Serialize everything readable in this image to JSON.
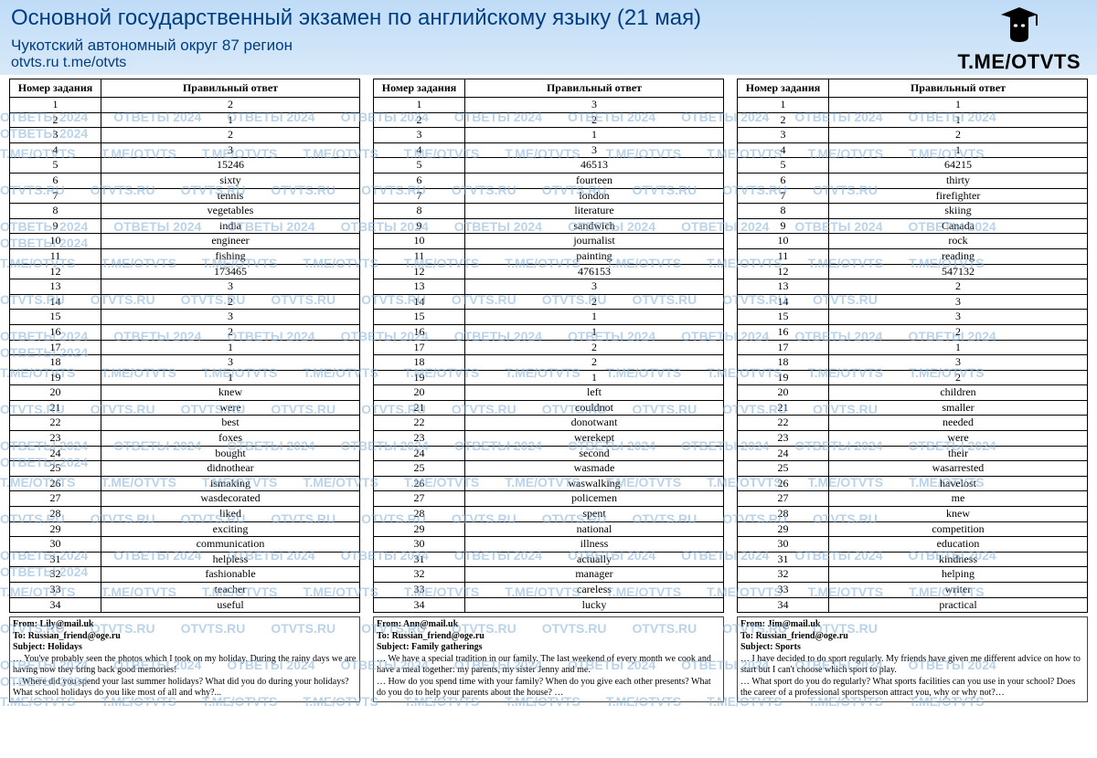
{
  "header": {
    "title": "Основной государственный экзамен по английскому языку (21 мая)",
    "subtitle": "Чукотский автономный округ 87 регион",
    "links": "otvts.ru   t.me/otvts",
    "logo_text": "T.ME/OTVTS"
  },
  "table_header": {
    "col1": "Номер задания",
    "col2": "Правильный ответ"
  },
  "variants": [
    {
      "answers": [
        "2",
        "1",
        "2",
        "3",
        "15246",
        "sixty",
        "tennis",
        "vegetables",
        "india",
        "engineer",
        "fishing",
        "173465",
        "3",
        "2",
        "3",
        "2",
        "1",
        "3",
        "1",
        "knew",
        "were",
        "best",
        "foxes",
        "bought",
        "didnothear",
        "ismaking",
        "wasdecorated",
        "liked",
        "exciting",
        "communication",
        "helpless",
        "fashionable",
        "teacher",
        "useful"
      ],
      "mail": {
        "from": "From: Lily@mail.uk",
        "to": "To: Russian_friend@oge.ru",
        "subject": "Subject: Holidays",
        "body1": "… You've probably seen the photos which I took on my holiday. During the rainy days we are having now they bring back good memories!",
        "body2": "…Where did you spend your last summer holidays? What did you do during your holidays? What school holidays do you like most of all and why?..."
      }
    },
    {
      "answers": [
        "3",
        "2",
        "1",
        "3",
        "46513",
        "fourteen",
        "london",
        "literature",
        "sandwich",
        "journalist",
        "painting",
        "476153",
        "3",
        "2",
        "1",
        "1",
        "2",
        "2",
        "1",
        "left",
        "couldnot",
        "donotwant",
        "werekept",
        "second",
        "wasmade",
        "waswalking",
        "policemen",
        "spent",
        "national",
        "illness",
        "actually",
        "manager",
        "careless",
        "lucky"
      ],
      "mail": {
        "from": "From: Ann@mail.uk",
        "to": "To: Russian_friend@oge.ru",
        "subject": "Subject: Family gatherings",
        "body1": "… We have a special tradition in our family. The last weekend of every month we cook and have a meal together: my parents, my sister Jenny and me.",
        "body2": "… How do you spend time with your family? When do you give each other presents? What do you do to help your parents about the house? …"
      }
    },
    {
      "answers": [
        "1",
        "1",
        "2",
        "1",
        "64215",
        "thirty",
        "firefighter",
        "skiing",
        "Canada",
        "rock",
        "reading",
        "547132",
        "2",
        "3",
        "3",
        "2",
        "1",
        "3",
        "2",
        "children",
        "smaller",
        "needed",
        "were",
        "their",
        "wasarrested",
        "havelost",
        "me",
        "knew",
        "competition",
        "education",
        "kindness",
        "helping",
        "writer",
        "practical"
      ],
      "mail": {
        "from": "From: Jim@mail.uk",
        "to": "To: Russian_friend@oge.ru",
        "subject": "Subject: Sports",
        "body1": "… I have decided to do sport regularly. My friends have given me different advice on how to start but I can't choose which sport to play.",
        "body2": "… What sport do you do regularly? What sports facilities can you use in your school? Does the career of a professional sportsperson attract you, why or why not?…"
      }
    }
  ],
  "watermarks": [
    "ОТВЕТЫ 2024",
    "T.ME/OTVTS",
    "OTVTS.RU"
  ]
}
